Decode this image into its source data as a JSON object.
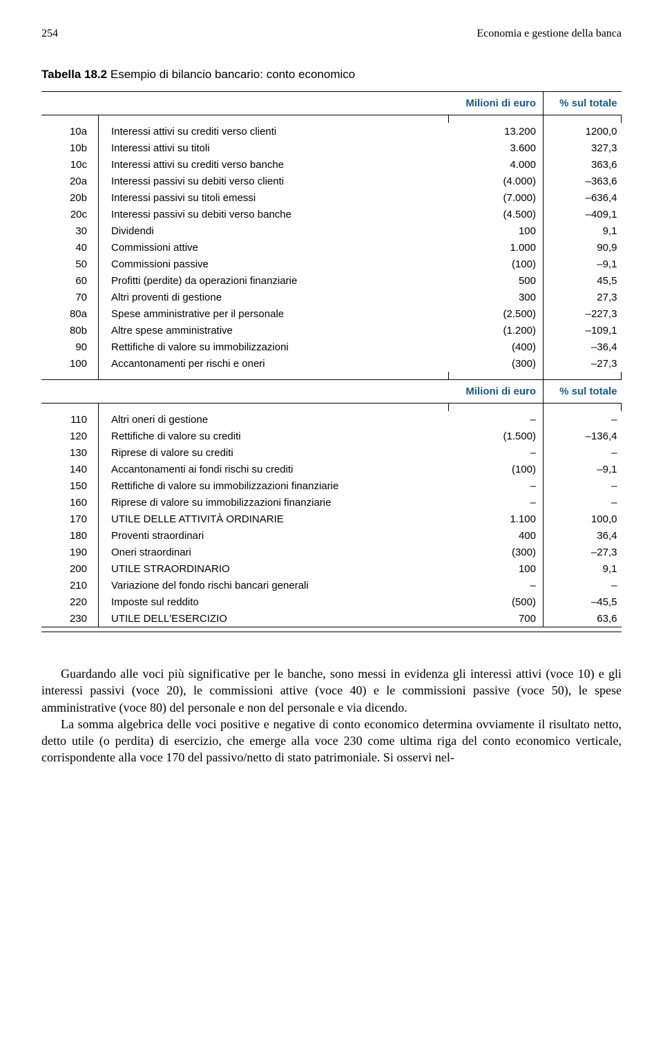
{
  "page_number": "254",
  "running_head": "Economia e gestione della banca",
  "table": {
    "title_prefix": "Tabella 18.2",
    "title_rest": " Esempio di bilancio bancario: conto economico",
    "header_label_amount": "Milioni di euro",
    "header_label_pct": "% sul totale",
    "rows1": [
      {
        "code": "10a",
        "desc": "Interessi attivi su crediti verso clienti",
        "val": "13.200",
        "pct": "1200,0"
      },
      {
        "code": "10b",
        "desc": "Interessi attivi su titoli",
        "val": "3.600",
        "pct": "327,3"
      },
      {
        "code": "10c",
        "desc": "Interessi attivi su crediti verso banche",
        "val": "4.000",
        "pct": "363,6"
      },
      {
        "code": "20a",
        "desc": "Interessi passivi su debiti verso clienti",
        "val": "(4.000)",
        "pct": "–363,6"
      },
      {
        "code": "20b",
        "desc": "Interessi passivi su titoli emessi",
        "val": "(7.000)",
        "pct": "–636,4"
      },
      {
        "code": "20c",
        "desc": "Interessi passivi su debiti verso banche",
        "val": "(4.500)",
        "pct": "–409,1"
      },
      {
        "code": "30",
        "desc": "Dividendi",
        "val": "100",
        "pct": "9,1"
      },
      {
        "code": "40",
        "desc": "Commissioni attive",
        "val": "1.000",
        "pct": "90,9"
      },
      {
        "code": "50",
        "desc": "Commissioni passive",
        "val": "(100)",
        "pct": "–9,1"
      },
      {
        "code": "60",
        "desc": "Profitti (perdite) da operazioni finanziarie",
        "val": "500",
        "pct": "45,5"
      },
      {
        "code": "70",
        "desc": "Altri proventi di gestione",
        "val": "300",
        "pct": "27,3"
      },
      {
        "code": "80a",
        "desc": "Spese amministrative per il personale",
        "val": "(2.500)",
        "pct": "–227,3"
      },
      {
        "code": "80b",
        "desc": "Altre spese amministrative",
        "val": "(1.200)",
        "pct": "–109,1"
      },
      {
        "code": "90",
        "desc": "Rettifiche di valore su immobilizzazioni",
        "val": "(400)",
        "pct": "–36,4"
      },
      {
        "code": "100",
        "desc": "Accantonamenti per rischi e oneri",
        "val": "(300)",
        "pct": "–27,3"
      }
    ],
    "rows2": [
      {
        "code": "110",
        "desc": "Altri oneri di gestione",
        "val": "–",
        "pct": "–"
      },
      {
        "code": "120",
        "desc": "Rettifiche di valore su crediti",
        "val": "(1.500)",
        "pct": "–136,4"
      },
      {
        "code": "130",
        "desc": "Riprese di valore su crediti",
        "val": "–",
        "pct": "–"
      },
      {
        "code": "140",
        "desc": "Accantonamenti ai fondi rischi su crediti",
        "val": "(100)",
        "pct": "–9,1"
      },
      {
        "code": "150",
        "desc": "Rettifiche di valore su immobilizzazioni finanziarie",
        "val": "–",
        "pct": "–"
      },
      {
        "code": "160",
        "desc": "Riprese di valore su immobilizzazioni finanziarie",
        "val": "–",
        "pct": "–"
      },
      {
        "code": "170",
        "desc": "UTILE DELLE ATTIVITÀ ORDINARIE",
        "val": "1.100",
        "pct": "100,0"
      },
      {
        "code": "180",
        "desc": "Proventi straordinari",
        "val": "400",
        "pct": "36,4"
      },
      {
        "code": "190",
        "desc": "Oneri straordinari",
        "val": "(300)",
        "pct": "–27,3"
      },
      {
        "code": "200",
        "desc": "UTILE STRAORDINARIO",
        "val": "100",
        "pct": "9,1"
      },
      {
        "code": "210",
        "desc": "Variazione del fondo rischi bancari generali",
        "val": "–",
        "pct": "–"
      },
      {
        "code": "220",
        "desc": "Imposte sul reddito",
        "val": "(500)",
        "pct": "–45,5"
      },
      {
        "code": "230",
        "desc": "UTILE DELL'ESERCIZIO",
        "val": "700",
        "pct": "63,6"
      }
    ]
  },
  "body": {
    "p1": "Guardando alle voci più significative per le banche, sono messi in evidenza gli interessi attivi (voce 10) e gli interessi passivi (voce 20), le commissioni attive (voce 40) e le commissioni passive (voce 50), le spese amministrative (voce 80) del personale e non del personale e via dicendo.",
    "p2": "La somma algebrica delle voci positive e negative di conto economico determina ovviamente il risultato netto, detto utile (o perdita) di esercizio, che emerge alla voce 230 come ultima riga del conto economico verticale, corrispondente alla voce 170 del passivo/netto di stato patrimoniale. Si osservi nel-"
  }
}
